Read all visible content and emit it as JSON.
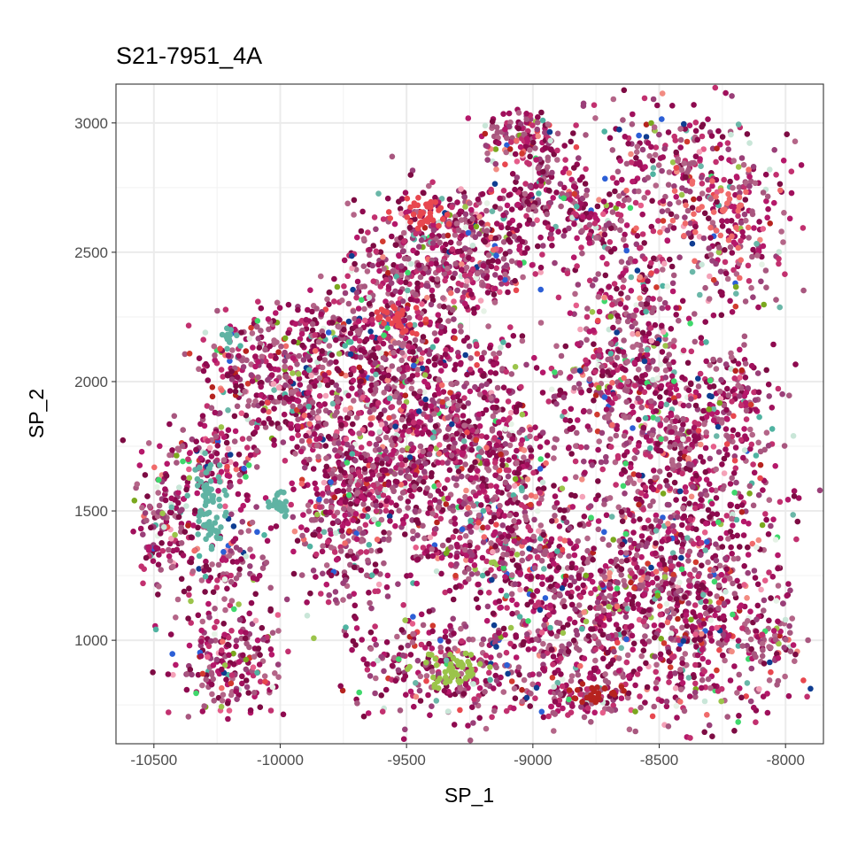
{
  "chart_data": {
    "type": "scatter",
    "title": "S21-7951_4A",
    "xlabel": "SP_1",
    "ylabel": "SP_2",
    "xlim": [
      -10650,
      -7850
    ],
    "ylim": [
      600,
      3150
    ],
    "x_ticks": [
      -10500,
      -10000,
      -9500,
      -9000,
      -8500,
      -8000
    ],
    "x_tick_labels": [
      "-10500",
      "-10000",
      "-9500",
      "-9000",
      "-8500",
      "-8000"
    ],
    "y_ticks": [
      1000,
      1500,
      2000,
      2500,
      3000
    ],
    "y_tick_labels": [
      "1000",
      "1500",
      "2000",
      "2500",
      "3000"
    ],
    "grid": true,
    "legend": "none",
    "point_colors": {
      "dominant": [
        "#8e0a4f",
        "#a0105c",
        "#b5186a",
        "#c2306f",
        "#9a3f78",
        "#a8577f",
        "#b46588",
        "#7d0b43"
      ],
      "secondary": [
        "#f06a6a",
        "#e8474f",
        "#f28b82",
        "#6ab7a8",
        "#4fb3a1",
        "#9bc44a",
        "#7aa81e",
        "#3fd86c",
        "#b6231f",
        "#d13a2f",
        "#2c5fd6",
        "#0f3d91",
        "#e6f2e6",
        "#c9e6d8",
        "#f4a2b8",
        "#e55d8a"
      ]
    },
    "clusters": [
      {
        "cx": -9050,
        "cy": 2950,
        "sx": 80,
        "sy": 60,
        "n": 120
      },
      {
        "cx": -8950,
        "cy": 2750,
        "sx": 80,
        "sy": 90,
        "n": 140
      },
      {
        "cx": -8780,
        "cy": 2620,
        "sx": 70,
        "sy": 60,
        "n": 80
      },
      {
        "cx": -9300,
        "cy": 2600,
        "sx": 170,
        "sy": 90,
        "n": 240
      },
      {
        "cx": -9500,
        "cy": 2400,
        "sx": 150,
        "sy": 110,
        "n": 220
      },
      {
        "cx": -9200,
        "cy": 2450,
        "sx": 140,
        "sy": 90,
        "n": 160
      },
      {
        "cx": -9800,
        "cy": 2200,
        "sx": 170,
        "sy": 60,
        "n": 170
      },
      {
        "cx": -10100,
        "cy": 2050,
        "sx": 130,
        "sy": 90,
        "n": 200
      },
      {
        "cx": -9900,
        "cy": 1900,
        "sx": 120,
        "sy": 120,
        "n": 190
      },
      {
        "cx": -9550,
        "cy": 2000,
        "sx": 160,
        "sy": 150,
        "n": 320
      },
      {
        "cx": -9300,
        "cy": 1850,
        "sx": 170,
        "sy": 200,
        "n": 400
      },
      {
        "cx": -9100,
        "cy": 1650,
        "sx": 130,
        "sy": 160,
        "n": 300
      },
      {
        "cx": -9750,
        "cy": 1500,
        "sx": 100,
        "sy": 200,
        "n": 340
      },
      {
        "cx": -9550,
        "cy": 1650,
        "sx": 130,
        "sy": 120,
        "n": 240
      },
      {
        "cx": -9200,
        "cy": 1350,
        "sx": 170,
        "sy": 80,
        "n": 200
      },
      {
        "cx": -8950,
        "cy": 1250,
        "sx": 120,
        "sy": 150,
        "n": 160
      },
      {
        "cx": -10450,
        "cy": 1450,
        "sx": 60,
        "sy": 130,
        "n": 150
      },
      {
        "cx": -10280,
        "cy": 1700,
        "sx": 100,
        "sy": 80,
        "n": 130
      },
      {
        "cx": -10200,
        "cy": 1300,
        "sx": 80,
        "sy": 120,
        "n": 110
      },
      {
        "cx": -10200,
        "cy": 920,
        "sx": 110,
        "sy": 110,
        "n": 200
      },
      {
        "cx": -9350,
        "cy": 900,
        "sx": 180,
        "sy": 110,
        "n": 290
      },
      {
        "cx": -8850,
        "cy": 1000,
        "sx": 150,
        "sy": 120,
        "n": 230
      },
      {
        "cx": -8800,
        "cy": 780,
        "sx": 120,
        "sy": 40,
        "n": 80
      },
      {
        "cx": -8600,
        "cy": 2300,
        "sx": 130,
        "sy": 150,
        "n": 250
      },
      {
        "cx": -8650,
        "cy": 2000,
        "sx": 150,
        "sy": 100,
        "n": 220
      },
      {
        "cx": -8450,
        "cy": 1800,
        "sx": 180,
        "sy": 150,
        "n": 330
      },
      {
        "cx": -8350,
        "cy": 1400,
        "sx": 200,
        "sy": 200,
        "n": 450
      },
      {
        "cx": -8600,
        "cy": 1250,
        "sx": 130,
        "sy": 120,
        "n": 200
      },
      {
        "cx": -8350,
        "cy": 1000,
        "sx": 170,
        "sy": 150,
        "n": 350
      },
      {
        "cx": -8450,
        "cy": 2850,
        "sx": 180,
        "sy": 150,
        "n": 260
      },
      {
        "cx": -8200,
        "cy": 2550,
        "sx": 110,
        "sy": 170,
        "n": 180
      },
      {
        "cx": -8200,
        "cy": 1950,
        "sx": 80,
        "sy": 80,
        "n": 90
      },
      {
        "cx": -8050,
        "cy": 1000,
        "sx": 60,
        "sy": 60,
        "n": 60
      }
    ],
    "highlight_clusters": [
      {
        "cx": -9450,
        "cy": 2650,
        "sx": 50,
        "sy": 30,
        "n": 40,
        "color": "#e8474f"
      },
      {
        "cx": -9550,
        "cy": 2250,
        "sx": 50,
        "sy": 30,
        "n": 30,
        "color": "#e8474f"
      },
      {
        "cx": -10280,
        "cy": 1500,
        "sx": 30,
        "sy": 80,
        "n": 70,
        "color": "#5fb3a3"
      },
      {
        "cx": -10000,
        "cy": 1530,
        "sx": 20,
        "sy": 25,
        "n": 25,
        "color": "#5fb3a3"
      },
      {
        "cx": -9300,
        "cy": 880,
        "sx": 80,
        "sy": 40,
        "n": 50,
        "color": "#9bc44a"
      },
      {
        "cx": -10200,
        "cy": 2180,
        "sx": 20,
        "sy": 20,
        "n": 12,
        "color": "#5fb3a3"
      },
      {
        "cx": -8750,
        "cy": 790,
        "sx": 70,
        "sy": 15,
        "n": 25,
        "color": "#b6231f"
      },
      {
        "cx": -8300,
        "cy": 2650,
        "sx": 100,
        "sy": 80,
        "n": 40,
        "color": "#f06a6a"
      }
    ]
  }
}
